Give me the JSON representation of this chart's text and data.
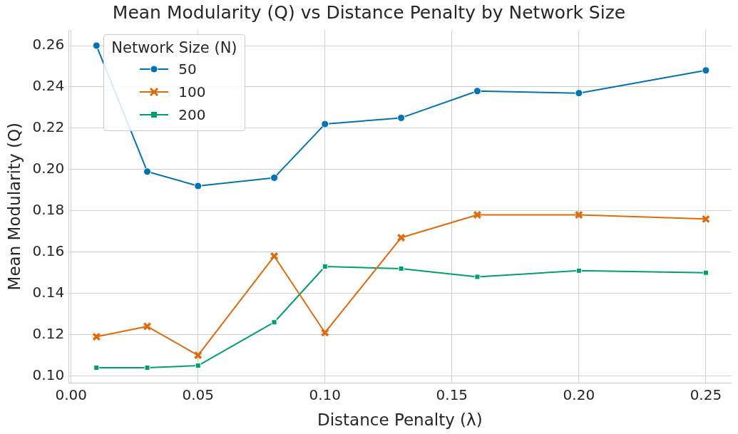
{
  "chart_data": {
    "type": "line",
    "title": "Mean Modularity (Q) vs Distance Penalty by Network Size",
    "xlabel": "Distance Penalty (λ)",
    "ylabel": "Mean Modularity (Q)",
    "legend_title": "Network Size (N)",
    "legend": "top left",
    "grid": true,
    "x": [
      0.01,
      0.03,
      0.05,
      0.08,
      0.1,
      0.13,
      0.16,
      0.2,
      0.25
    ],
    "xlim": [
      -0.001,
      0.26
    ],
    "xticks": [
      {
        "value": 0,
        "label": "0.00"
      },
      0.05,
      {
        "value": 0.1,
        "label": "0.10"
      },
      0.15,
      {
        "value": 0.2,
        "label": "0.20"
      },
      0.25
    ],
    "ylim": [
      0.0966,
      0.2676
    ],
    "yticks": [
      {
        "value": 0.1,
        "label": "0.10"
      },
      0.12,
      0.14,
      0.16,
      0.18,
      {
        "value": 0.2,
        "label": "0.20"
      },
      0.22,
      0.24,
      0.26
    ],
    "series": [
      {
        "name": "50",
        "color": "#0173b2",
        "marker": "circle",
        "values": [
          0.26,
          0.199,
          0.192,
          0.196,
          0.222,
          0.225,
          0.238,
          0.237,
          0.248
        ]
      },
      {
        "name": "100",
        "color": "#de6a0c",
        "marker": "cross",
        "values": [
          0.119,
          0.124,
          0.11,
          0.158,
          0.121,
          0.167,
          0.178,
          0.178,
          0.176
        ]
      },
      {
        "name": "200",
        "color": "#029e73",
        "marker": "square",
        "values": [
          0.104,
          0.104,
          0.105,
          0.126,
          0.153,
          0.152,
          0.148,
          0.151,
          0.15
        ]
      }
    ]
  }
}
